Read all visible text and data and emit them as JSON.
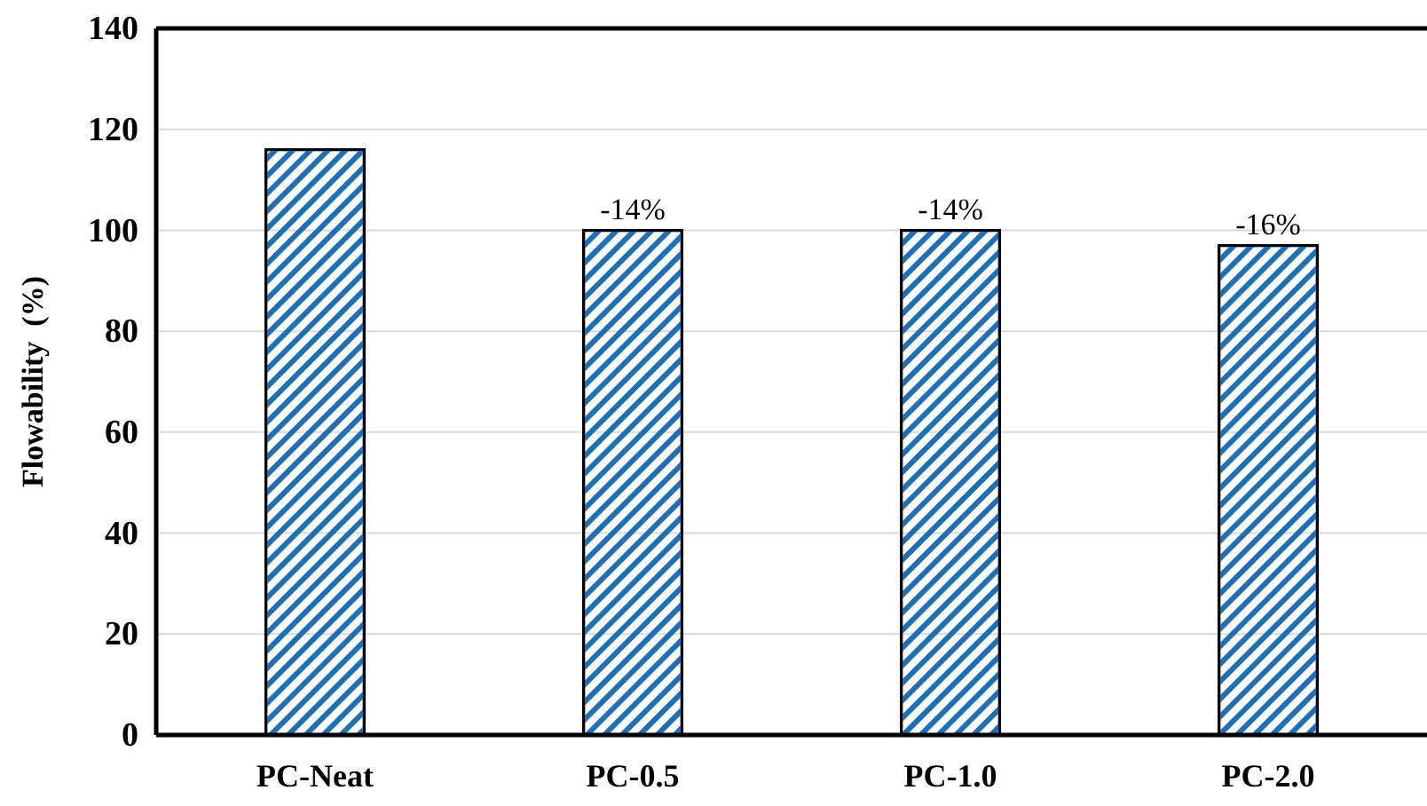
{
  "chart_data": {
    "type": "bar",
    "ylabel": "Flowability  (%)",
    "categories": [
      "PC-Neat",
      "PC-0.5",
      "PC-1.0",
      "PC-2.0"
    ],
    "values": [
      116,
      100,
      100,
      97
    ],
    "annotations": [
      {
        "text": "-14%",
        "x": "PC-0.5",
        "y": 100
      },
      {
        "text": "-14%",
        "x": "PC-1.0",
        "y": 100
      },
      {
        "text": "-16%",
        "x": "PC-2.0",
        "y": 97
      }
    ],
    "color": "#1f6fb4",
    "ylim": [
      0,
      140
    ],
    "yticks": [
      0,
      20,
      40,
      60,
      80,
      100,
      120,
      140
    ],
    "grid": "y"
  }
}
